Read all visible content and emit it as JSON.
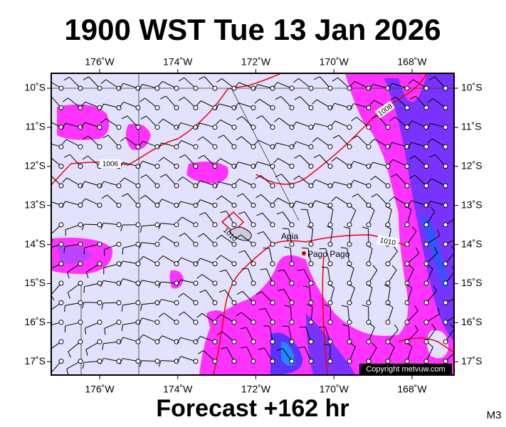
{
  "header": {
    "title": "1900 WST Tue 13 Jan 2026"
  },
  "footer": {
    "forecast": "Forecast +162 hr",
    "code": "M3"
  },
  "axes": {
    "longitudes": [
      "176˚W",
      "174˚W",
      "172˚W",
      "170˚W",
      "168˚W"
    ],
    "latitudes": [
      "10˚S",
      "11˚S",
      "12˚S",
      "13˚S",
      "14˚S",
      "15˚S",
      "16˚S",
      "17˚S"
    ]
  },
  "isobar_labels": [
    "1008",
    "1006",
    "1010",
    "1010"
  ],
  "places": [
    "Apia",
    "Pago Pago"
  ],
  "copyright": "Copyright metvuw.com"
}
